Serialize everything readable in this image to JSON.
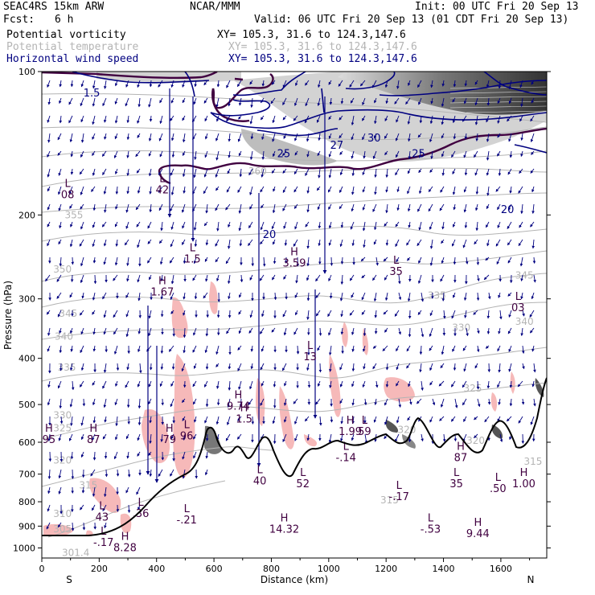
{
  "header": {
    "model": "SEAC4RS 15km ARW",
    "org": "NCAR/MMM",
    "init": "Init: 00 UTC Fri 20 Sep 13",
    "fcst_label": "Fcst:",
    "fcst_value": "6 h",
    "valid": "Valid: 06 UTC Fri 20 Sep 13 (01 CDT Fri 20 Sep 13)"
  },
  "legend": [
    {
      "label": "Potential vorticity",
      "xy": "XY= 105.3, 31.6 to 124.3,147.6",
      "color": "#000000"
    },
    {
      "label": "Potential temperature",
      "xy": "XY= 105.3, 31.6 to 124.3,147.6",
      "color": "#b4b4b4"
    },
    {
      "label": "Horizontal wind speed",
      "xy": "XY= 105.3, 31.6 to 124.3,147.6",
      "color": "#000080"
    }
  ],
  "chart_data": {
    "type": "cross-section",
    "xlabel": "Distance (km)",
    "ylabel": "Pressure (hPa)",
    "x_ticks": [
      0,
      200,
      400,
      600,
      800,
      1000,
      1200,
      1400,
      1600
    ],
    "y_ticks": [
      100,
      200,
      300,
      400,
      500,
      600,
      700,
      800,
      900,
      1000
    ],
    "xlim": [
      0,
      1760
    ],
    "ylim": [
      1050,
      100
    ],
    "y_scale": "log",
    "left_end_label": "S",
    "right_end_label": "N",
    "theta_labels": [
      {
        "text": "355",
        "x": 80,
        "p": 200
      },
      {
        "text": "350",
        "x": 40,
        "p": 260
      },
      {
        "text": "345",
        "x": 60,
        "p": 322
      },
      {
        "text": "340",
        "x": 45,
        "p": 360
      },
      {
        "text": "335",
        "x": 55,
        "p": 418
      },
      {
        "text": "330",
        "x": 40,
        "p": 527
      },
      {
        "text": "325",
        "x": 40,
        "p": 561
      },
      {
        "text": "320",
        "x": 40,
        "p": 655
      },
      {
        "text": "315",
        "x": 130,
        "p": 738
      },
      {
        "text": "310",
        "x": 40,
        "p": 848
      },
      {
        "text": "305",
        "x": 40,
        "p": 913
      },
      {
        "text": "301.4",
        "x": 70,
        "p": 1024
      },
      {
        "text": "335",
        "x": 1345,
        "p": 295
      },
      {
        "text": "330",
        "x": 1430,
        "p": 345
      },
      {
        "text": "325",
        "x": 1470,
        "p": 462
      },
      {
        "text": "320",
        "x": 1240,
        "p": 565
      },
      {
        "text": "320",
        "x": 1480,
        "p": 595
      },
      {
        "text": "315",
        "x": 1680,
        "p": 658
      },
      {
        "text": "315",
        "x": 1180,
        "p": 793
      },
      {
        "text": "360",
        "x": 720,
        "p": 162
      },
      {
        "text": "345",
        "x": 1650,
        "p": 268
      },
      {
        "text": "340",
        "x": 1650,
        "p": 335
      }
    ],
    "wind_labels": [
      {
        "text": "25",
        "x": 820,
        "p": 149
      },
      {
        "text": "27",
        "x": 1005,
        "p": 143
      },
      {
        "text": "30",
        "x": 1135,
        "p": 138
      },
      {
        "text": "25",
        "x": 1290,
        "p": 149
      },
      {
        "text": "20",
        "x": 770,
        "p": 220
      },
      {
        "text": "20",
        "x": 1600,
        "p": 195
      },
      {
        "text": "1.5",
        "x": 145,
        "p": 111
      }
    ],
    "pv_extrema": [
      {
        "type": "L",
        "value": "08",
        "x": 90,
        "p": 176
      },
      {
        "type": "L",
        "value": "42",
        "x": 420,
        "p": 172
      },
      {
        "type": "H",
        "value": "1.67",
        "x": 420,
        "p": 282
      },
      {
        "type": "L",
        "value": "1.5",
        "x": 525,
        "p": 240
      },
      {
        "type": "H",
        "value": "3.59",
        "x": 880,
        "p": 245
      },
      {
        "type": "L",
        "value": "35",
        "x": 1235,
        "p": 255
      },
      {
        "type": "L",
        "value": "03",
        "x": 1660,
        "p": 304
      },
      {
        "type": "L",
        "value": "13",
        "x": 935,
        "p": 385
      },
      {
        "type": "H",
        "value": "9.74",
        "x": 685,
        "p": 489
      },
      {
        "type": "H",
        "value": "1.5",
        "x": 705,
        "p": 521
      },
      {
        "type": "H",
        "value": "95",
        "x": 25,
        "p": 575
      },
      {
        "type": "H",
        "value": "87",
        "x": 180,
        "p": 575
      },
      {
        "type": "H",
        "value": "79",
        "x": 445,
        "p": 575
      },
      {
        "type": "L",
        "value": "96",
        "x": 505,
        "p": 565
      },
      {
        "type": "H",
        "value": "1.99",
        "x": 1075,
        "p": 553
      },
      {
        "type": "L",
        "value": "59",
        "x": 1125,
        "p": 553
      },
      {
        "type": "H",
        "value": "87",
        "x": 1460,
        "p": 628
      },
      {
        "type": "L",
        "value": "-.14",
        "x": 1060,
        "p": 627
      },
      {
        "type": "L",
        "value": "40",
        "x": 760,
        "p": 702
      },
      {
        "type": "L",
        "value": "52",
        "x": 910,
        "p": 712
      },
      {
        "type": "L",
        "value": "35",
        "x": 1445,
        "p": 712
      },
      {
        "type": "L",
        "value": ".50",
        "x": 1590,
        "p": 728
      },
      {
        "type": "H",
        "value": "1.00",
        "x": 1680,
        "p": 712
      },
      {
        "type": "L",
        "value": "-.17",
        "x": 1245,
        "p": 757
      },
      {
        "type": "L",
        "value": "43",
        "x": 210,
        "p": 837
      },
      {
        "type": "L",
        "value": ".36",
        "x": 345,
        "p": 822
      },
      {
        "type": "L",
        "value": "-.21",
        "x": 505,
        "p": 848
      },
      {
        "type": "H",
        "value": "14.32",
        "x": 845,
        "p": 887
      },
      {
        "type": "L",
        "value": "-.53",
        "x": 1355,
        "p": 887
      },
      {
        "type": "H",
        "value": "9.44",
        "x": 1520,
        "p": 905
      },
      {
        "type": "L",
        "value": "-.17",
        "x": 215,
        "p": 945
      },
      {
        "type": "H",
        "value": "8.28",
        "x": 290,
        "p": 970
      }
    ]
  },
  "colors": {
    "pv_contour": "#400040",
    "theta": "#b4b4b4",
    "wind": "#000080",
    "pv_positive_fill": "#f6b9b9",
    "high_pv_fill": "#9a9a9a",
    "terrain": "#000000"
  }
}
